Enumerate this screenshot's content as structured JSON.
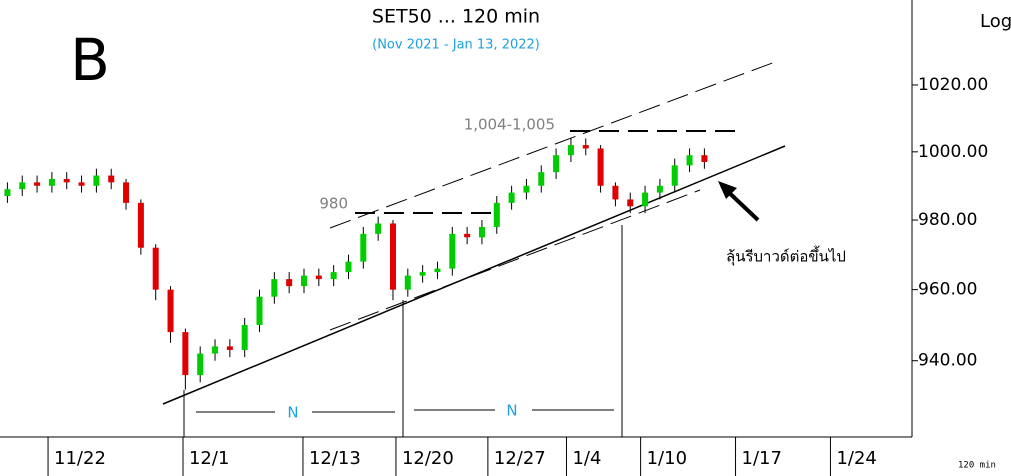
{
  "chart_data": {
    "type": "candlestick",
    "title": "SET50 ... 120 min",
    "subtitle": "(Nov 2021 - Jan 13, 2022)",
    "panel_label": "B",
    "scale_label": "Log",
    "interval_label": "120 min",
    "log_scale": true,
    "annotations": [
      "1,004-1,005",
      "980",
      "N",
      "N",
      "ลุ้นรีบาวด์ต่อขึ้นไป"
    ],
    "up_color": "#00cc00",
    "down_color": "#e00000",
    "open": [
      987,
      989,
      991,
      990,
      992,
      991,
      990,
      993,
      991,
      985,
      972,
      960,
      948,
      936,
      942,
      944,
      943,
      950,
      958,
      963,
      961,
      964,
      963,
      965,
      968,
      976,
      979,
      960,
      964,
      965,
      966,
      976,
      975,
      978,
      985,
      988,
      990,
      994,
      999,
      1002,
      1001,
      990,
      986,
      984,
      988,
      990,
      996,
      999
    ],
    "high": [
      991,
      993,
      993,
      994,
      994,
      993,
      995,
      995,
      992,
      986,
      973,
      961,
      949,
      944,
      946,
      946,
      952,
      960,
      965,
      965,
      966,
      966,
      967,
      970,
      978,
      981,
      980,
      966,
      967,
      968,
      978,
      978,
      980,
      987,
      990,
      992,
      996,
      1001,
      1004,
      1004,
      1002,
      991,
      988,
      990,
      992,
      998,
      1001,
      1001
    ],
    "low": [
      985,
      987,
      988,
      988,
      989,
      988,
      988,
      989,
      983,
      970,
      957,
      945,
      932,
      934,
      940,
      941,
      941,
      948,
      956,
      959,
      959,
      961,
      961,
      963,
      966,
      974,
      957,
      958,
      962,
      963,
      964,
      973,
      973,
      976,
      983,
      986,
      988,
      992,
      997,
      999,
      988,
      984,
      982,
      982,
      986,
      988,
      994,
      995
    ],
    "close": [
      989,
      991,
      990,
      992,
      991,
      990,
      993,
      991,
      985,
      972,
      960,
      948,
      936,
      942,
      944,
      943,
      950,
      958,
      963,
      961,
      964,
      963,
      965,
      968,
      976,
      979,
      960,
      964,
      965,
      966,
      976,
      975,
      978,
      985,
      988,
      990,
      994,
      999,
      1002,
      1001,
      990,
      986,
      984,
      988,
      990,
      996,
      999,
      997
    ],
    "xlim": [
      -0.5,
      61
    ],
    "xticks": [
      {
        "value": 2.74,
        "label": "11/22"
      },
      {
        "value": 11.84,
        "label": "12/1"
      },
      {
        "value": 19.93,
        "label": "12/13"
      },
      {
        "value": 26.2,
        "label": "12/20"
      },
      {
        "value": 32.4,
        "label": "12/27"
      },
      {
        "value": 37.7,
        "label": "1/4"
      },
      {
        "value": 42.7,
        "label": "1/10"
      },
      {
        "value": 49.1,
        "label": "1/17"
      },
      {
        "value": 55.5,
        "label": "1/24"
      }
    ],
    "ylim": [
      919,
      1046
    ],
    "yticks": [
      {
        "value": 940,
        "label": "940.00"
      },
      {
        "value": 960,
        "label": "960.00"
      },
      {
        "value": 980,
        "label": "980.00"
      },
      {
        "value": 1000,
        "label": "1000.00"
      },
      {
        "value": 1020,
        "label": "1020.00"
      }
    ]
  }
}
